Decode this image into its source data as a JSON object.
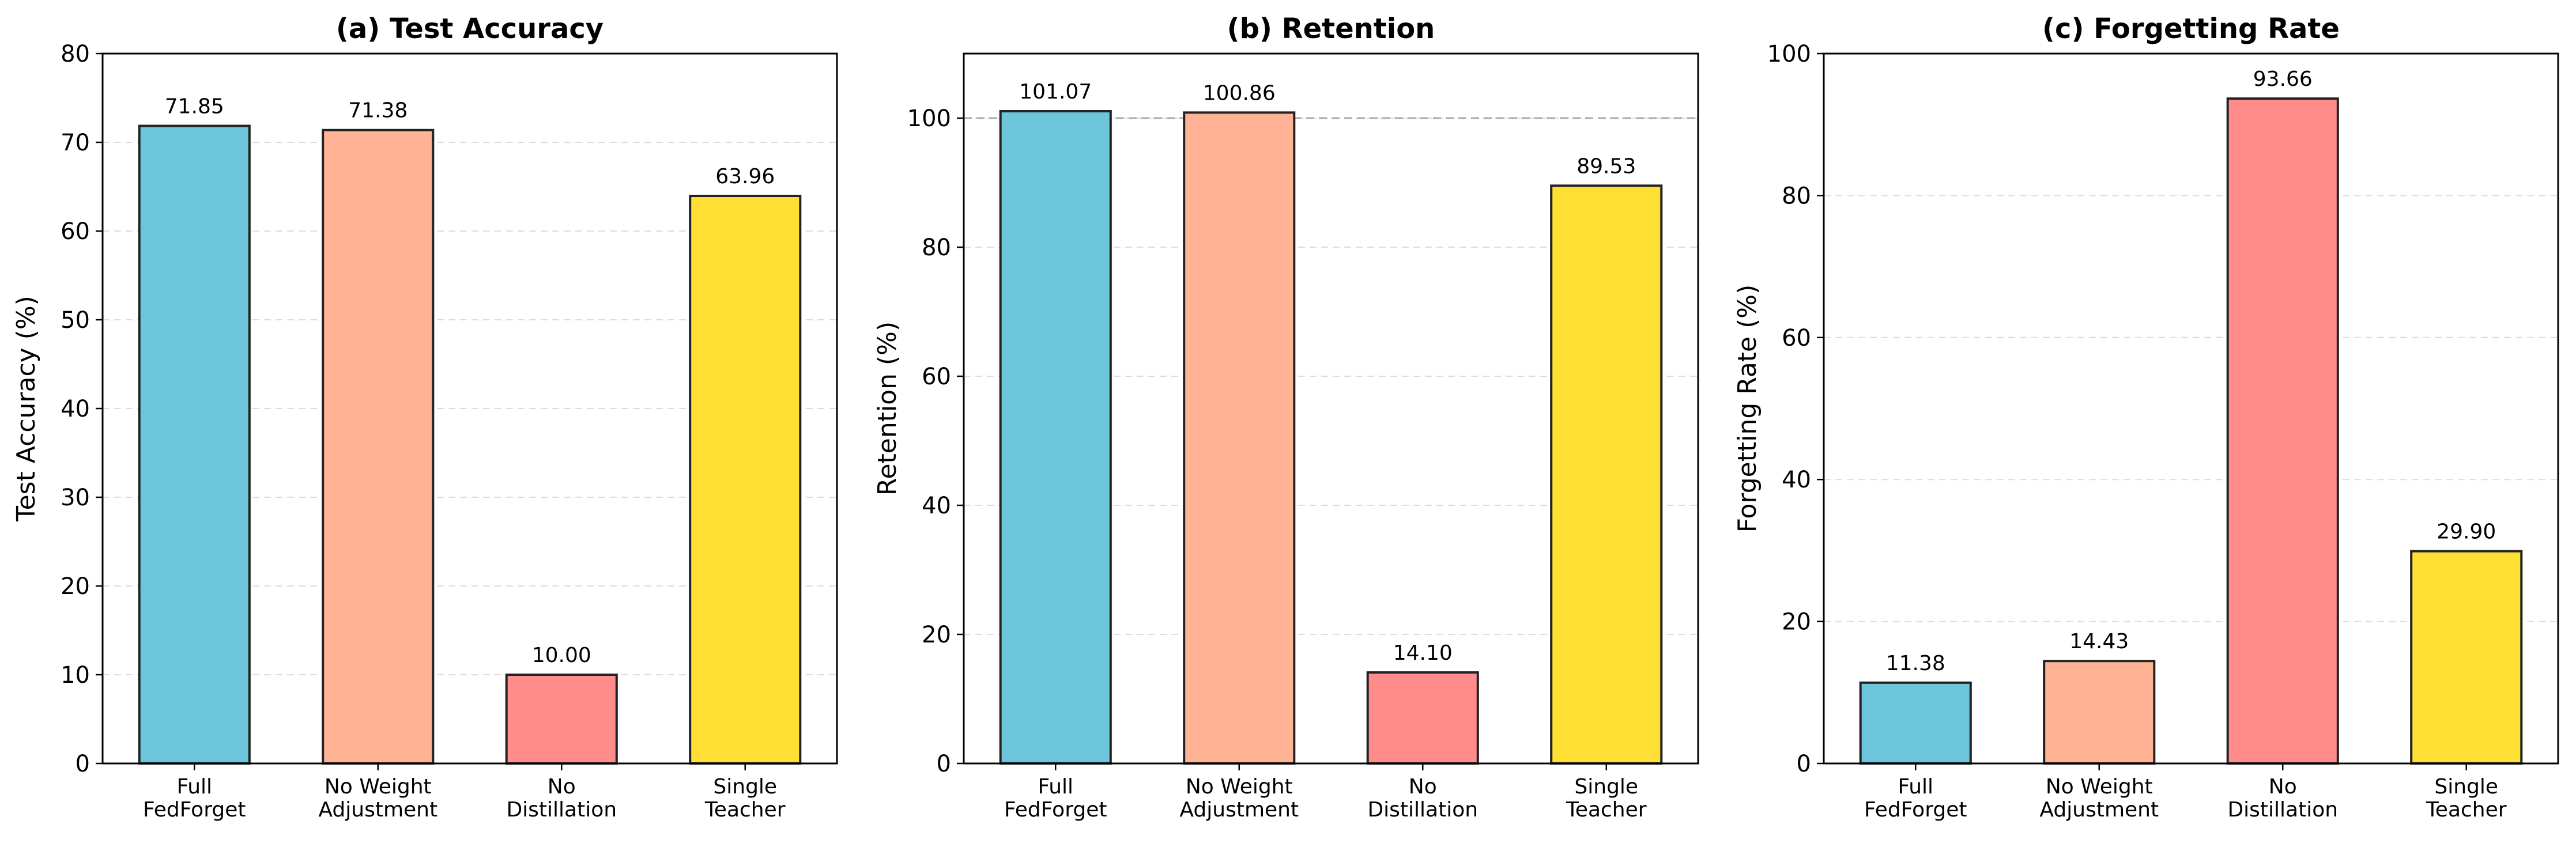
{
  "chart_data": [
    {
      "type": "bar",
      "title": "(a) Test Accuracy",
      "ylabel": "Test Accuracy (%)",
      "xlabel": "",
      "categories": [
        [
          "Full",
          "FedForget"
        ],
        [
          "No Weight",
          "Adjustment"
        ],
        [
          "No",
          "Distillation"
        ],
        [
          "Single",
          "Teacher"
        ]
      ],
      "values": [
        71.85,
        71.38,
        10.0,
        63.96
      ],
      "value_labels": [
        "71.85",
        "71.38",
        "10.00",
        "63.96"
      ],
      "ylim": [
        0,
        80
      ],
      "yticks": [
        0,
        10,
        20,
        30,
        40,
        50,
        60,
        70,
        80
      ],
      "reference_line": null,
      "grid": "y-dashed"
    },
    {
      "type": "bar",
      "title": "(b) Retention",
      "ylabel": "Retention (%)",
      "xlabel": "",
      "categories": [
        [
          "Full",
          "FedForget"
        ],
        [
          "No Weight",
          "Adjustment"
        ],
        [
          "No",
          "Distillation"
        ],
        [
          "Single",
          "Teacher"
        ]
      ],
      "values": [
        101.07,
        100.86,
        14.1,
        89.53
      ],
      "value_labels": [
        "101.07",
        "100.86",
        "14.10",
        "89.53"
      ],
      "ylim": [
        0,
        110
      ],
      "yticks": [
        0,
        20,
        40,
        60,
        80,
        100
      ],
      "reference_line": 100,
      "grid": "y-dashed"
    },
    {
      "type": "bar",
      "title": "(c) Forgetting Rate",
      "ylabel": "Forgetting Rate (%)",
      "xlabel": "",
      "categories": [
        [
          "Full",
          "FedForget"
        ],
        [
          "No Weight",
          "Adjustment"
        ],
        [
          "No",
          "Distillation"
        ],
        [
          "Single",
          "Teacher"
        ]
      ],
      "values": [
        11.38,
        14.43,
        93.66,
        29.9
      ],
      "value_labels": [
        "11.38",
        "14.43",
        "93.66",
        "29.90"
      ],
      "ylim": [
        0,
        100
      ],
      "yticks": [
        0,
        20,
        40,
        60,
        80,
        100
      ],
      "reference_line": null,
      "grid": "y-dashed"
    }
  ],
  "colors": {
    "bars": [
      "#6cc5da",
      "#ffb294",
      "#ff8b8b",
      "#ffdf33"
    ],
    "edge": "#222222",
    "grid": "#dddddd",
    "reference_line": "#aaaaaa"
  }
}
